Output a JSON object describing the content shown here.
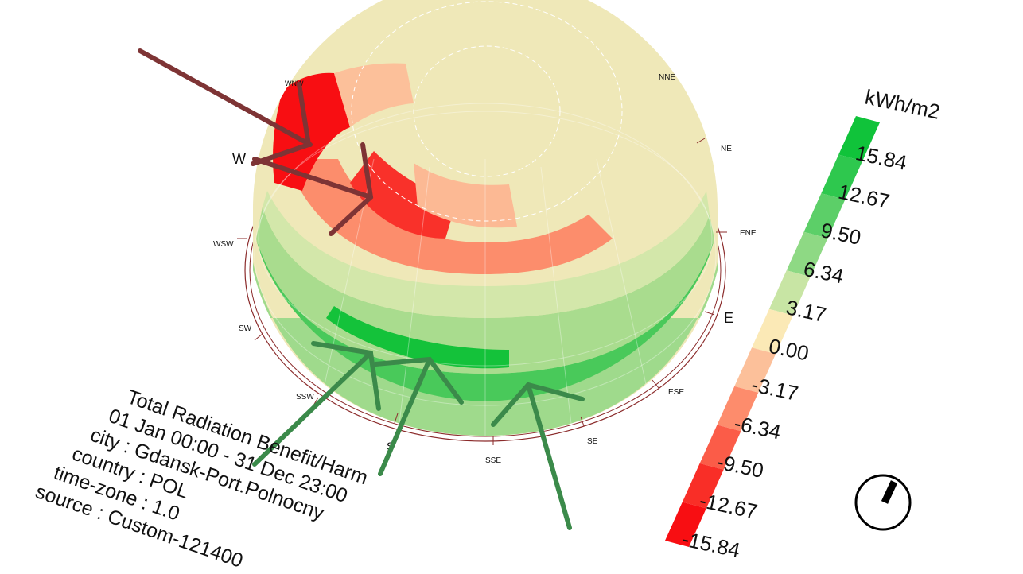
{
  "legend": {
    "unit": "kWh/m2",
    "labels": [
      "15.84",
      "12.67",
      "9.50",
      "6.34",
      "3.17",
      "0.00",
      "-3.17",
      "-6.34",
      "-9.50",
      "-12.67",
      "-15.84"
    ],
    "colors": [
      "#10c33a",
      "#2ec84e",
      "#5ccf68",
      "#8ed984",
      "#c8e5a4",
      "#fbe9b6",
      "#fcc09a",
      "#fd8c6c",
      "#fb5c48",
      "#f92e27",
      "#f80e12"
    ]
  },
  "info": {
    "line1": "Total Radiation Benefit/Harm",
    "line2": "01 Jan 00:00 - 31 Dec 23:00",
    "line3": "city : Gdansk-Port.Polnocny",
    "line4": "country : POL",
    "line5": "time-zone : 1.0",
    "line6": "source : Custom-121400"
  },
  "compass": {
    "WNW": "WNW",
    "NNE": "NNE",
    "NE": "NE",
    "W": "W",
    "ENE": "ENE",
    "WSW": "WSW",
    "SW": "SW",
    "E": "E",
    "SSW": "SSW",
    "ESE": "ESE",
    "S": "S",
    "SE": "SE",
    "SSE": "SSE"
  },
  "arrow_colors": {
    "harm": "#7e3435",
    "benefit": "#3b8a4a"
  }
}
